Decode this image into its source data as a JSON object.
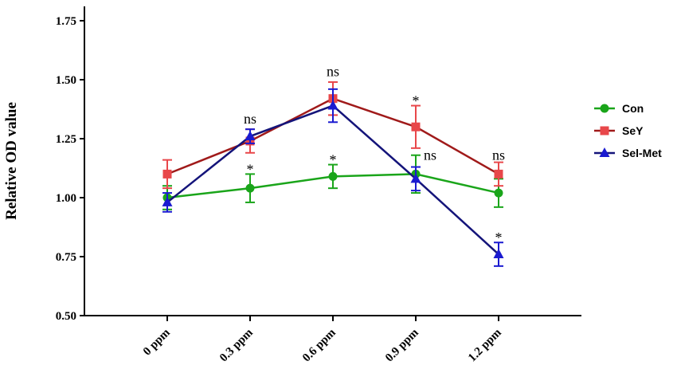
{
  "chart_data": {
    "type": "line",
    "ylabel": "Relative OD value",
    "xlabel": "",
    "ylim": [
      0.5,
      1.75
    ],
    "yticks": [
      "0.50",
      "0.75",
      "1.00",
      "1.25",
      "1.50",
      "1.75"
    ],
    "categories": [
      "0 ppm",
      "0.3 ppm",
      "0.6 ppm",
      "0.9 ppm",
      "1.2 ppm"
    ],
    "grid": false,
    "legend_position": "right",
    "series": [
      {
        "name": "Con",
        "color": "#1aa51a",
        "marker": "circle",
        "values": [
          1.0,
          1.04,
          1.09,
          1.1,
          1.02
        ],
        "errors": [
          0.05,
          0.06,
          0.05,
          0.08,
          0.06
        ]
      },
      {
        "name": "SeY",
        "color": "#e8474a",
        "line_color": "#a01a1a",
        "marker": "square",
        "values": [
          1.1,
          1.24,
          1.42,
          1.3,
          1.1
        ],
        "errors": [
          0.06,
          0.05,
          0.07,
          0.09,
          0.05
        ]
      },
      {
        "name": "Sel-Met",
        "color": "#1a1ad0",
        "line_color": "#14147a",
        "marker": "triangle",
        "values": [
          0.98,
          1.26,
          1.39,
          1.08,
          0.76
        ],
        "errors": [
          0.04,
          0.03,
          0.07,
          0.05,
          0.05
        ]
      }
    ],
    "annotations": [
      {
        "category": "0.3 ppm",
        "text": "ns",
        "y": 1.315
      },
      {
        "category": "0.3 ppm",
        "text": "*",
        "y": 1.1
      },
      {
        "category": "0.6 ppm",
        "text": "ns",
        "y": 1.515
      },
      {
        "category": "0.6 ppm",
        "text": "*",
        "y": 1.14
      },
      {
        "category": "0.9 ppm",
        "text": "*",
        "y": 1.39
      },
      {
        "category": "0.9 ppm",
        "text": "ns",
        "y": 1.16
      },
      {
        "category": "1.2 ppm",
        "text": "ns",
        "y": 1.16
      },
      {
        "category": "1.2 ppm",
        "text": "*",
        "y": 0.81
      }
    ]
  }
}
